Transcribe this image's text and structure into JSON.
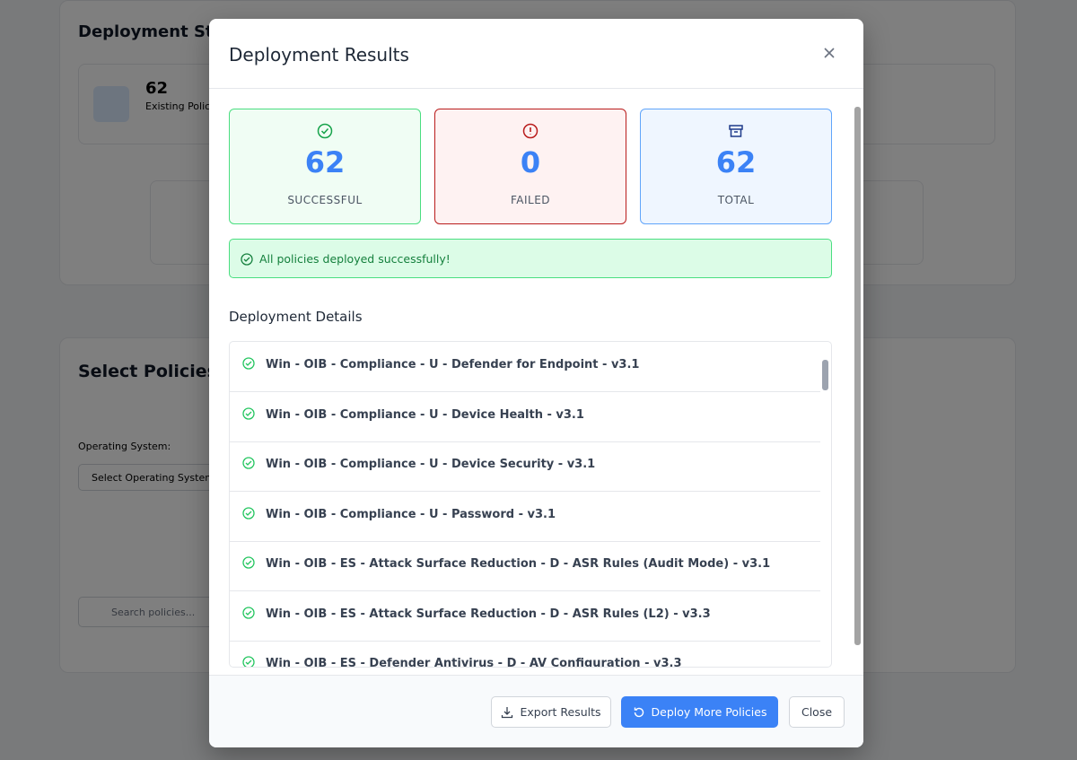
{
  "background": {
    "status_title": "Deployment Status",
    "existing_count": "62",
    "existing_label": "Existing Policies",
    "select_title": "Select Policies",
    "os_label": "Operating System:",
    "os_placeholder": "Select Operating System",
    "search_placeholder": "Search policies..."
  },
  "modal": {
    "title": "Deployment Results",
    "stats": [
      {
        "value": "62",
        "label": "SUCCESSFUL"
      },
      {
        "value": "0",
        "label": "FAILED"
      },
      {
        "value": "62",
        "label": "TOTAL"
      }
    ],
    "banner": "All policies deployed successfully!",
    "details_title": "Deployment Details",
    "details": [
      "Win - OIB - Compliance - U - Defender for Endpoint - v3.1",
      "Win - OIB - Compliance - U - Device Health - v3.1",
      "Win - OIB - Compliance - U - Device Security - v3.1",
      "Win - OIB - Compliance - U - Password - v3.1",
      "Win - OIB - ES - Attack Surface Reduction - D - ASR Rules (Audit Mode) - v3.1",
      "Win - OIB - ES - Attack Surface Reduction - D - ASR Rules (L2) - v3.3",
      "Win - OIB - ES - Defender Antivirus - D - AV Configuration - v3.3"
    ],
    "buttons": [
      "Export Results",
      "Deploy More Policies",
      "Close"
    ]
  }
}
